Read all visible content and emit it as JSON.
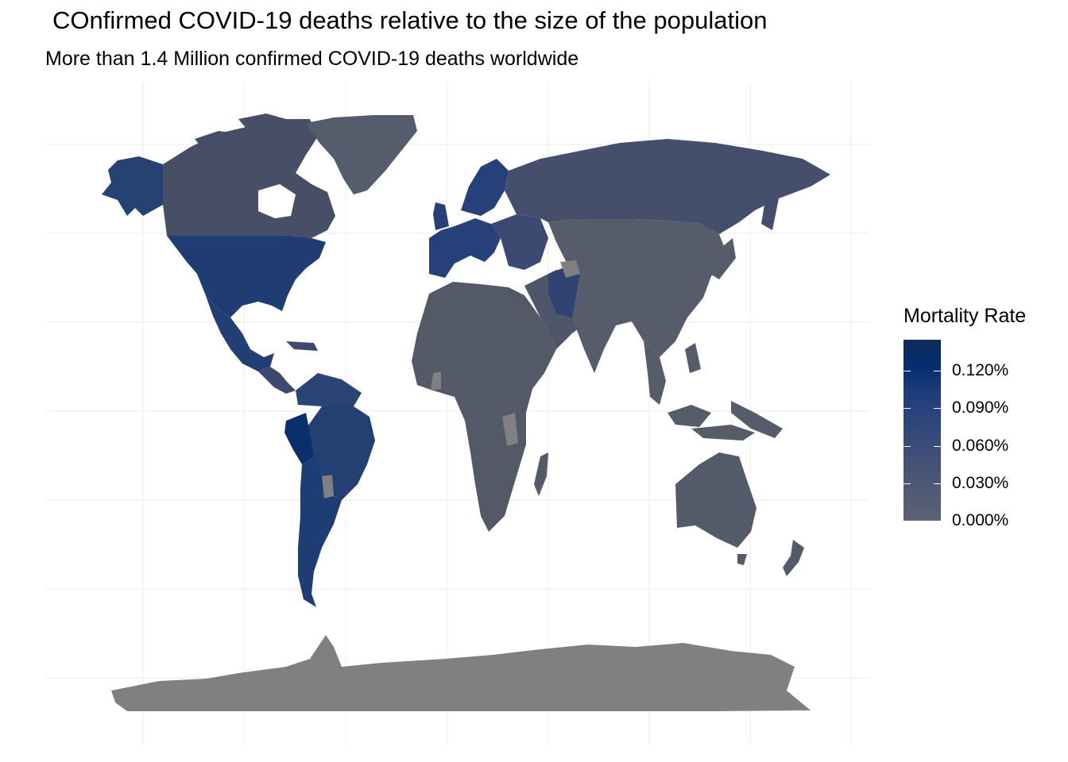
{
  "title": "COnfirmed COVID-19 deaths relative to the size of the population",
  "subtitle": "More than 1.4 Million confirmed COVID-19 deaths worldwide",
  "legend": {
    "title": "Mortality Rate",
    "ticks": [
      {
        "label": "0.120%",
        "value": 0.0012
      },
      {
        "label": "0.090%",
        "value": 0.0009
      },
      {
        "label": "0.060%",
        "value": 0.0006
      },
      {
        "label": "0.030%",
        "value": 0.0003
      },
      {
        "label": "0.000%",
        "value": 0.0
      }
    ],
    "range": [
      0.0,
      0.00145
    ],
    "color_low": "#5c6373",
    "color_high": "#0d2b5a"
  },
  "map": {
    "projection": "Miller-like world",
    "grid": true,
    "no_data_color": "#808080",
    "grid_color": "#ebebeb",
    "regions": [
      {
        "name": "Alaska",
        "color": "#264273"
      },
      {
        "name": "Canada",
        "color": "#474f66"
      },
      {
        "name": "Greenland",
        "color": "#555c6b"
      },
      {
        "name": "United States",
        "color": "#1f3c73"
      },
      {
        "name": "Mexico",
        "color": "#223f75"
      },
      {
        "name": "Central America",
        "color": "#3d4a6e"
      },
      {
        "name": "South America North",
        "color": "#2a4475"
      },
      {
        "name": "Brazil",
        "color": "#243f72"
      },
      {
        "name": "Peru",
        "color": "#0a2f6b"
      },
      {
        "name": "Argentina and Chile",
        "color": "#1f3d75"
      },
      {
        "name": "Europe West",
        "color": "#26407a"
      },
      {
        "name": "Europe East",
        "color": "#3c4a72"
      },
      {
        "name": "Russia",
        "color": "#454f6c"
      },
      {
        "name": "Africa",
        "color": "#535967"
      },
      {
        "name": "Middle East",
        "color": "#4f5669"
      },
      {
        "name": "Iran",
        "color": "#2f4472"
      },
      {
        "name": "Asia",
        "color": "#565c69"
      },
      {
        "name": "Southeast Asia",
        "color": "#565c69"
      },
      {
        "name": "Australia",
        "color": "#535a69"
      },
      {
        "name": "New Zealand",
        "color": "#535a69"
      },
      {
        "name": "Antarctica",
        "color": "#808080"
      }
    ]
  }
}
